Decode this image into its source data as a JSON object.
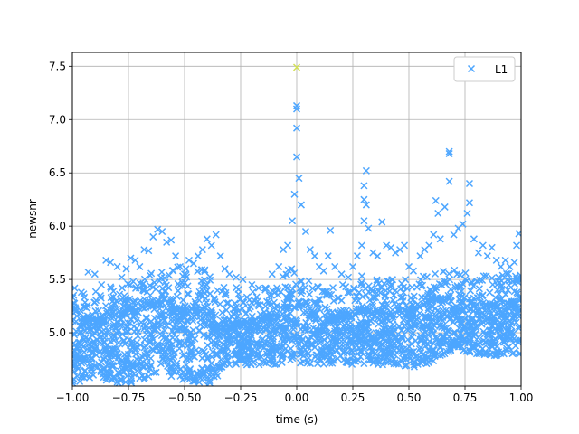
{
  "chart_data": {
    "type": "scatter",
    "xlabel": "time (s)",
    "ylabel": "newsnr",
    "xlim": [
      -1.0,
      1.0
    ],
    "ylim": [
      4.5,
      7.63
    ],
    "grid": true,
    "legend_placement": "top-right",
    "x_ticks": [
      "-1.00",
      "-0.75",
      "-0.50",
      "-0.25",
      "0.00",
      "0.25",
      "0.50",
      "0.75",
      "1.00"
    ],
    "y_ticks": [
      "5.0",
      "5.5",
      "6.0",
      "6.5",
      "7.0",
      "7.5"
    ],
    "colors": {
      "series": "#4da6ff",
      "loudest": "#d4e157",
      "grid": "#b0b0b0"
    },
    "series": [
      {
        "name": "L1",
        "marker": "x",
        "points": [
          [
            -0.99,
            5.42
          ],
          [
            -0.96,
            5.38
          ],
          [
            -0.93,
            5.57
          ],
          [
            -0.9,
            5.55
          ],
          [
            -0.87,
            5.45
          ],
          [
            -0.85,
            5.68
          ],
          [
            -0.83,
            5.66
          ],
          [
            -0.8,
            5.62
          ],
          [
            -0.78,
            5.52
          ],
          [
            -0.76,
            5.6
          ],
          [
            -0.74,
            5.7
          ],
          [
            -0.72,
            5.68
          ],
          [
            -0.7,
            5.62
          ],
          [
            -0.68,
            5.78
          ],
          [
            -0.66,
            5.77
          ],
          [
            -0.64,
            5.9
          ],
          [
            -0.62,
            5.97
          ],
          [
            -0.6,
            5.95
          ],
          [
            -0.58,
            5.85
          ],
          [
            -0.56,
            5.87
          ],
          [
            -0.54,
            5.72
          ],
          [
            -0.52,
            5.62
          ],
          [
            -0.5,
            5.55
          ],
          [
            -0.48,
            5.68
          ],
          [
            -0.46,
            5.65
          ],
          [
            -0.44,
            5.72
          ],
          [
            -0.42,
            5.78
          ],
          [
            -0.4,
            5.88
          ],
          [
            -0.38,
            5.82
          ],
          [
            -0.36,
            5.92
          ],
          [
            -0.34,
            5.72
          ],
          [
            -0.32,
            5.6
          ],
          [
            -0.3,
            5.55
          ],
          [
            -0.27,
            5.52
          ],
          [
            -0.24,
            5.5
          ],
          [
            -0.2,
            5.45
          ],
          [
            -0.17,
            5.42
          ],
          [
            -0.14,
            5.42
          ],
          [
            -0.11,
            5.55
          ],
          [
            -0.08,
            5.62
          ],
          [
            -0.06,
            5.78
          ],
          [
            -0.04,
            5.82
          ],
          [
            -0.02,
            6.05
          ],
          [
            -0.01,
            6.3
          ],
          [
            0.0,
            6.65
          ],
          [
            0.0,
            6.92
          ],
          [
            0.0,
            7.1
          ],
          [
            0.0,
            7.13
          ],
          [
            0.01,
            6.45
          ],
          [
            0.02,
            6.2
          ],
          [
            0.04,
            5.95
          ],
          [
            0.06,
            5.78
          ],
          [
            0.08,
            5.72
          ],
          [
            0.1,
            5.62
          ],
          [
            0.12,
            5.58
          ],
          [
            0.14,
            5.72
          ],
          [
            0.15,
            5.96
          ],
          [
            0.17,
            5.62
          ],
          [
            0.2,
            5.55
          ],
          [
            0.23,
            5.52
          ],
          [
            0.25,
            5.62
          ],
          [
            0.27,
            5.72
          ],
          [
            0.29,
            5.82
          ],
          [
            0.3,
            6.05
          ],
          [
            0.3,
            6.25
          ],
          [
            0.3,
            6.38
          ],
          [
            0.31,
            6.52
          ],
          [
            0.31,
            6.2
          ],
          [
            0.32,
            5.98
          ],
          [
            0.34,
            5.75
          ],
          [
            0.36,
            5.72
          ],
          [
            0.38,
            6.04
          ],
          [
            0.4,
            5.82
          ],
          [
            0.42,
            5.8
          ],
          [
            0.44,
            5.75
          ],
          [
            0.46,
            5.78
          ],
          [
            0.48,
            5.82
          ],
          [
            0.5,
            5.62
          ],
          [
            0.52,
            5.58
          ],
          [
            0.55,
            5.72
          ],
          [
            0.57,
            5.78
          ],
          [
            0.59,
            5.82
          ],
          [
            0.61,
            5.92
          ],
          [
            0.62,
            6.24
          ],
          [
            0.63,
            6.12
          ],
          [
            0.64,
            5.88
          ],
          [
            0.66,
            6.18
          ],
          [
            0.68,
            6.42
          ],
          [
            0.68,
            6.68
          ],
          [
            0.68,
            6.7
          ],
          [
            0.7,
            5.92
          ],
          [
            0.72,
            5.98
          ],
          [
            0.74,
            6.02
          ],
          [
            0.76,
            6.12
          ],
          [
            0.77,
            6.22
          ],
          [
            0.77,
            6.4
          ],
          [
            0.79,
            5.88
          ],
          [
            0.81,
            5.75
          ],
          [
            0.83,
            5.82
          ],
          [
            0.85,
            5.72
          ],
          [
            0.87,
            5.8
          ],
          [
            0.89,
            5.68
          ],
          [
            0.91,
            5.62
          ],
          [
            0.93,
            5.68
          ],
          [
            0.95,
            5.62
          ],
          [
            0.97,
            5.66
          ],
          [
            0.98,
            5.82
          ],
          [
            0.99,
            5.93
          ]
        ]
      }
    ],
    "highlight_point": [
      0.0,
      7.49
    ],
    "envelope": {
      "x": [
        -1.0,
        -0.9,
        -0.8,
        -0.7,
        -0.6,
        -0.5,
        -0.4,
        -0.3,
        -0.2,
        -0.1,
        0.0,
        0.1,
        0.2,
        0.3,
        0.4,
        0.5,
        0.6,
        0.7,
        0.8,
        0.9,
        1.0
      ],
      "upper": [
        5.45,
        5.4,
        5.45,
        5.5,
        5.7,
        5.6,
        5.6,
        5.45,
        5.4,
        5.45,
        5.7,
        5.42,
        5.45,
        5.55,
        5.5,
        5.5,
        5.55,
        5.6,
        5.55,
        5.55,
        5.6
      ],
      "mid": [
        5.2,
        5.1,
        5.15,
        5.2,
        5.3,
        5.2,
        5.2,
        5.05,
        5.1,
        5.15,
        5.4,
        5.1,
        5.15,
        5.2,
        5.2,
        5.2,
        5.3,
        5.3,
        5.25,
        5.25,
        5.3
      ],
      "lower": [
        4.5,
        4.6,
        4.5,
        4.55,
        4.6,
        4.55,
        4.5,
        4.7,
        4.7,
        4.7,
        4.72,
        4.7,
        4.72,
        4.68,
        4.7,
        4.66,
        4.72,
        4.85,
        4.8,
        4.78,
        4.8
      ]
    }
  }
}
